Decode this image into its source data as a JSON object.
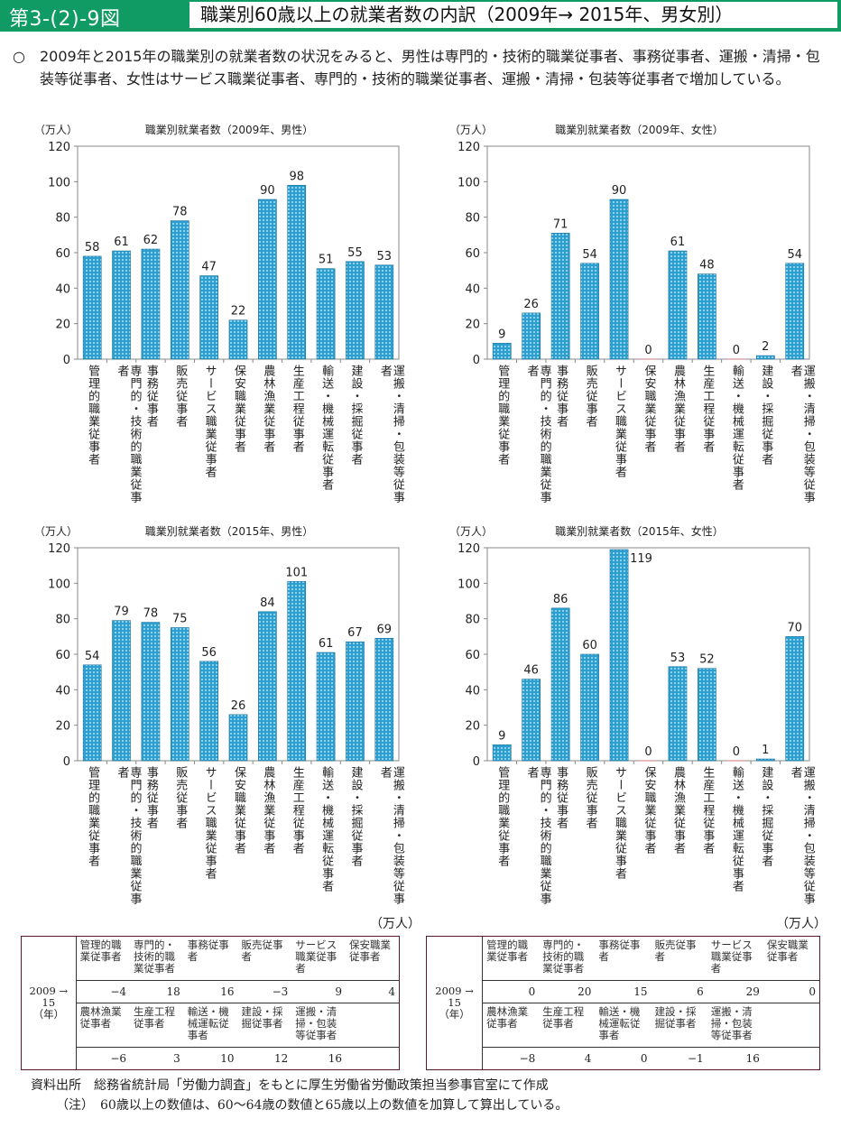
{
  "header": {
    "figure_number": "第3-(2)-9図",
    "title": "職業別60歳以上の就業者数の内訳（2009年→ 2015年、男女別）"
  },
  "lead": {
    "bullet": "○",
    "text": "2009年と2015年の職業別の就業者数の状況をみると、男性は専門的・技術的職業従事者、事務従事者、運搬・清掃・包装等従事者、女性はサービス職業従事者、専門的・技術的職業従事者、運搬・清掃・包装等従事者で増加している。"
  },
  "colors": {
    "accent": "#0f9b63",
    "bar": "#2a9fd0",
    "axis": "#888888"
  },
  "chart_data": [
    {
      "type": "bar",
      "title": "職業別就業者数（2009年、男性）",
      "unit": "（万人）",
      "categories": [
        "管理的職業従事者",
        "専門的・技術的職業従事者",
        "事務従事者",
        "販売従事者",
        "サービス職業従事者",
        "保安職業従事者",
        "農林漁業従事者",
        "生産工程従事者",
        "輸送・機械運転従事者",
        "建設・採掘従事者",
        "運搬・清掃・包装等従事者"
      ],
      "values": [
        58,
        61,
        62,
        78,
        47,
        22,
        90,
        98,
        51,
        55,
        53
      ],
      "yticks": [
        0,
        20,
        40,
        60,
        80,
        100,
        120
      ],
      "ylim": [
        0,
        120
      ]
    },
    {
      "type": "bar",
      "title": "職業別就業者数（2009年、女性）",
      "unit": "（万人）",
      "categories": [
        "管理的職業従事者",
        "専門的・技術的職業従事者",
        "事務従事者",
        "販売従事者",
        "サービス職業従事者",
        "保安職業従事者",
        "農林漁業従事者",
        "生産工程従事者",
        "輸送・機械運転従事者",
        "建設・採掘従事者",
        "運搬・清掃・包装等従事者"
      ],
      "values": [
        9,
        26,
        71,
        54,
        90,
        0,
        61,
        48,
        0,
        2,
        54
      ],
      "yticks": [
        0,
        20,
        40,
        60,
        80,
        100,
        120
      ],
      "ylim": [
        0,
        120
      ]
    },
    {
      "type": "bar",
      "title": "職業別就業者数（2015年、男性）",
      "unit": "（万人）",
      "categories": [
        "管理的職業従事者",
        "専門的・技術的職業従事者",
        "事務従事者",
        "販売従事者",
        "サービス職業従事者",
        "保安職業従事者",
        "農林漁業従事者",
        "生産工程従事者",
        "輸送・機械運転従事者",
        "建設・採掘従事者",
        "運搬・清掃・包装等従事者"
      ],
      "values": [
        54,
        79,
        78,
        75,
        56,
        26,
        84,
        101,
        61,
        67,
        69
      ],
      "yticks": [
        0,
        20,
        40,
        60,
        80,
        100,
        120
      ],
      "ylim": [
        0,
        120
      ]
    },
    {
      "type": "bar",
      "title": "職業別就業者数（2015年、女性）",
      "unit": "（万人）",
      "categories": [
        "管理的職業従事者",
        "専門的・技術的職業従事者",
        "事務従事者",
        "販売従事者",
        "サービス職業従事者",
        "保安職業従事者",
        "農林漁業従事者",
        "生産工程従事者",
        "輸送・機械運転従事者",
        "建設・採掘従事者",
        "運搬・清掃・包装等従事者"
      ],
      "values": [
        9,
        46,
        86,
        60,
        119,
        0,
        53,
        52,
        0,
        1,
        70
      ],
      "yticks": [
        0,
        20,
        40,
        60,
        80,
        100,
        120
      ],
      "ylim": [
        0,
        120
      ]
    }
  ],
  "tables": [
    {
      "unit": "（万人）",
      "period": [
        "2009 → 15",
        "（年）"
      ],
      "row1_headers": [
        "管理的職業従事者",
        "専門的・技術的職業従事者",
        "事務従事者",
        "販売従事者",
        "サービス職業従事者",
        "保安職業従事者"
      ],
      "row1_values": [
        "−4",
        "18",
        "16",
        "−3",
        "9",
        "4"
      ],
      "row2_headers": [
        "農林漁業従事者",
        "生産工程従事者",
        "輸送・機械運転従事者",
        "建設・採掘従事者",
        "運搬・清掃・包装等従事者",
        ""
      ],
      "row2_values": [
        "−6",
        "3",
        "10",
        "12",
        "16",
        ""
      ]
    },
    {
      "unit": "（万人）",
      "period": [
        "2009 → 15",
        "（年）"
      ],
      "row1_headers": [
        "管理的職業従事者",
        "専門的・技術的職業従事者",
        "事務従事者",
        "販売従事者",
        "サービス職業従事者",
        "保安職業従事者"
      ],
      "row1_values": [
        "0",
        "20",
        "15",
        "6",
        "29",
        "0"
      ],
      "row2_headers": [
        "農林漁業従事者",
        "生産工程従事者",
        "輸送・機械運転従事者",
        "建設・採掘従事者",
        "運搬・清掃・包装等従事者",
        ""
      ],
      "row2_values": [
        "−8",
        "4",
        "0",
        "−1",
        "16",
        ""
      ]
    }
  ],
  "footer": {
    "source_label": "資料出所",
    "source_text": "総務省統計局「労働力調査」をもとに厚生労働省労働政策担当参事官室にて作成",
    "note_label": "（注）",
    "note_text": "60歳以上の数値は、60～64歳の数値と65歳以上の数値を加算して算出している。"
  }
}
